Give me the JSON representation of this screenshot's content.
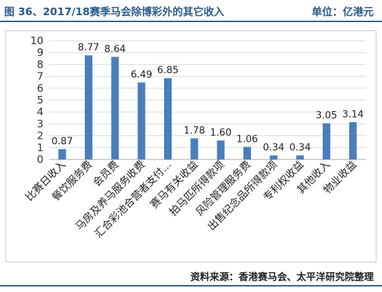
{
  "header": {
    "title": "图 36、2017/18赛季马会除博彩外的其它收入",
    "unit": "单位：亿港元"
  },
  "footer": {
    "source": "资料来源：香港赛马会、太平洋研究院整理"
  },
  "colors": {
    "bar": "#4a7ebb",
    "accent": "#2a5c8a",
    "grid": "#d9d9d9"
  },
  "chart_data": {
    "type": "bar",
    "categories": [
      "比赛日收入",
      "餐饮服务费",
      "会员费",
      "马房及养马服务收费",
      "汇合彩池合营者支付…",
      "赛马有关收益",
      "拍马匹所得款项",
      "风险管理服务费",
      "出售纪念品所得款项",
      "专利权收益",
      "其他收入",
      "物业收益"
    ],
    "values": [
      0.87,
      8.77,
      8.64,
      6.49,
      6.85,
      1.78,
      1.6,
      1.06,
      0.34,
      0.34,
      3.05,
      3.14
    ],
    "data_labels": [
      "0.87",
      "8.77",
      "8.64",
      "6.49",
      "6.85",
      "1.78",
      "1.60",
      "1.06",
      "0.34",
      "0.34",
      "3.05",
      "3.14"
    ],
    "y_ticks": [
      "0",
      "1",
      "2",
      "3",
      "4",
      "5",
      "6",
      "7",
      "8",
      "9",
      "10"
    ],
    "ylim": [
      0,
      10
    ],
    "grid": true,
    "legend": "none"
  }
}
